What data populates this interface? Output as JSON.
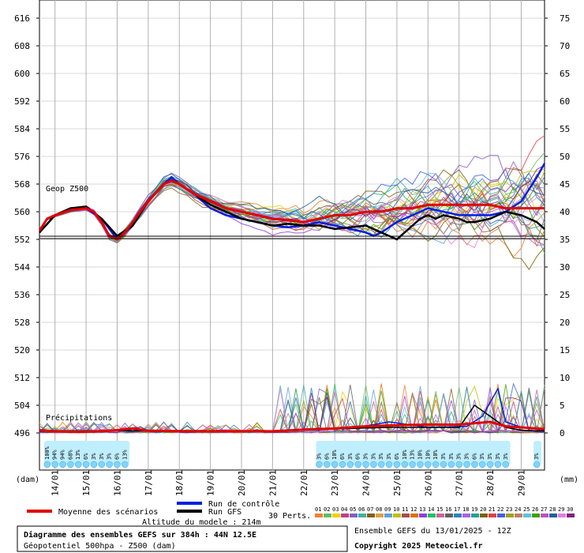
{
  "chart_data": {
    "type": "line",
    "left_axis": {
      "ticks": [
        616,
        608,
        600,
        592,
        584,
        576,
        568,
        560,
        552,
        544,
        536,
        528,
        520,
        512,
        504,
        496
      ],
      "unit": "(dam)"
    },
    "right_axis": {
      "ticks": [
        75,
        70,
        65,
        60,
        55,
        50,
        45,
        40,
        35,
        30,
        25,
        20,
        15,
        10,
        5,
        0
      ],
      "unit": "(mm)"
    },
    "x_ticks": [
      "14/01",
      "15/01",
      "16/01",
      "17/01",
      "18/01",
      "19/01",
      "20/01",
      "21/01",
      "22/01",
      "23/01",
      "24/01",
      "25/01",
      "26/01",
      "27/01",
      "28/01",
      "29/01"
    ],
    "reference_level": 552.5,
    "geop_label": "Geop Z500",
    "precip_label": "Précipitations",
    "mean_z500": [
      [
        0,
        554.5
      ],
      [
        1,
        558
      ],
      [
        2,
        559
      ],
      [
        4,
        560.5
      ],
      [
        6,
        561
      ],
      [
        7,
        560
      ],
      [
        8,
        557
      ],
      [
        9,
        553
      ],
      [
        10,
        552
      ],
      [
        11,
        554
      ],
      [
        12,
        557
      ],
      [
        14,
        563
      ],
      [
        16,
        568
      ],
      [
        17,
        569
      ],
      [
        18,
        568
      ],
      [
        20,
        565
      ],
      [
        22,
        563
      ],
      [
        24,
        561
      ],
      [
        26,
        560
      ],
      [
        28,
        559
      ],
      [
        30,
        558
      ],
      [
        32,
        557.5
      ],
      [
        34,
        557
      ],
      [
        36,
        558
      ],
      [
        38,
        559
      ],
      [
        40,
        559
      ],
      [
        42,
        560
      ],
      [
        44,
        560
      ],
      [
        46,
        561
      ],
      [
        48,
        561
      ],
      [
        50,
        562
      ],
      [
        52,
        562
      ],
      [
        54,
        562
      ],
      [
        56,
        562
      ],
      [
        58,
        562
      ],
      [
        60,
        561
      ],
      [
        62,
        561
      ],
      [
        64,
        561
      ],
      [
        65,
        561
      ]
    ],
    "control_z500": [
      [
        0,
        554
      ],
      [
        2,
        559
      ],
      [
        4,
        561
      ],
      [
        6,
        561
      ],
      [
        8,
        558
      ],
      [
        10,
        552
      ],
      [
        12,
        556
      ],
      [
        14,
        563
      ],
      [
        16,
        568
      ],
      [
        17,
        570
      ],
      [
        18,
        568
      ],
      [
        20,
        565
      ],
      [
        22,
        561
      ],
      [
        24,
        559
      ],
      [
        26,
        558
      ],
      [
        28,
        557
      ],
      [
        30,
        556
      ],
      [
        32,
        555.5
      ],
      [
        34,
        556
      ],
      [
        36,
        557
      ],
      [
        38,
        556
      ],
      [
        40,
        555
      ],
      [
        42,
        554
      ],
      [
        43,
        553
      ],
      [
        44,
        554
      ],
      [
        46,
        557
      ],
      [
        48,
        559
      ],
      [
        50,
        561
      ],
      [
        52,
        560
      ],
      [
        54,
        559
      ],
      [
        56,
        559
      ],
      [
        58,
        559
      ],
      [
        60,
        560
      ],
      [
        62,
        563
      ],
      [
        64,
        570
      ],
      [
        65,
        574
      ]
    ],
    "gfs_z500": [
      [
        0,
        554
      ],
      [
        2,
        559
      ],
      [
        4,
        561
      ],
      [
        6,
        561.5
      ],
      [
        8,
        558
      ],
      [
        10,
        553
      ],
      [
        12,
        556
      ],
      [
        14,
        563
      ],
      [
        16,
        568
      ],
      [
        17,
        569
      ],
      [
        18,
        568
      ],
      [
        20,
        565
      ],
      [
        22,
        562
      ],
      [
        24,
        560
      ],
      [
        26,
        558
      ],
      [
        28,
        557
      ],
      [
        30,
        556
      ],
      [
        32,
        556.5
      ],
      [
        34,
        556
      ],
      [
        36,
        556
      ],
      [
        38,
        555
      ],
      [
        40,
        555.5
      ],
      [
        42,
        556
      ],
      [
        44,
        554
      ],
      [
        45,
        553
      ],
      [
        46,
        552
      ],
      [
        48,
        556
      ],
      [
        49,
        558
      ],
      [
        50,
        559
      ],
      [
        51,
        558
      ],
      [
        52,
        559
      ],
      [
        54,
        558
      ],
      [
        55,
        557
      ],
      [
        56,
        557
      ],
      [
        58,
        558
      ],
      [
        59,
        559
      ],
      [
        60,
        560
      ],
      [
        62,
        559
      ],
      [
        64,
        557
      ],
      [
        65,
        555
      ]
    ],
    "mean_precip": [
      [
        0,
        0.5
      ],
      [
        2,
        0.3
      ],
      [
        4,
        0.2
      ],
      [
        6,
        0.2
      ],
      [
        8,
        0.3
      ],
      [
        10,
        0.5
      ],
      [
        12,
        0.8
      ],
      [
        14,
        0.4
      ],
      [
        20,
        0.3
      ],
      [
        30,
        0.3
      ],
      [
        34,
        0.6
      ],
      [
        38,
        0.8
      ],
      [
        42,
        1.2
      ],
      [
        46,
        1.4
      ],
      [
        50,
        1.5
      ],
      [
        54,
        1.5
      ],
      [
        58,
        2
      ],
      [
        60,
        1.2
      ],
      [
        62,
        1
      ],
      [
        65,
        0.7
      ]
    ],
    "control_precip": [
      [
        0,
        0.3
      ],
      [
        10,
        0.4
      ],
      [
        20,
        0.3
      ],
      [
        30,
        0.4
      ],
      [
        40,
        0.8
      ],
      [
        43,
        1.5
      ],
      [
        45,
        2
      ],
      [
        50,
        1
      ],
      [
        55,
        1.2
      ],
      [
        57,
        3
      ],
      [
        59,
        8
      ],
      [
        60,
        2
      ],
      [
        62,
        1
      ],
      [
        65,
        0.5
      ]
    ],
    "gfs_precip": [
      [
        0,
        0.3
      ],
      [
        10,
        0.4
      ],
      [
        20,
        0.3
      ],
      [
        30,
        0.4
      ],
      [
        40,
        0.8
      ],
      [
        45,
        1
      ],
      [
        50,
        1
      ],
      [
        54,
        1
      ],
      [
        56,
        5
      ],
      [
        58,
        3
      ],
      [
        60,
        1
      ],
      [
        62,
        0.5
      ],
      [
        65,
        0.3
      ]
    ],
    "series": [
      {
        "name": "Moyenne des scénarios",
        "color": "#e00000"
      },
      {
        "name": "Run de contrôle",
        "color": "#0020e0"
      },
      {
        "name": "Run GFS",
        "color": "#000000"
      }
    ],
    "perturbations_label": "30 Perts.",
    "perturbation_ids": [
      "01",
      "02",
      "03",
      "04",
      "05",
      "06",
      "07",
      "08",
      "09",
      "10",
      "11",
      "12",
      "13",
      "14",
      "15",
      "16",
      "17",
      "18",
      "19",
      "20",
      "21",
      "22",
      "23",
      "24",
      "25",
      "26",
      "27",
      "28",
      "29",
      "30"
    ],
    "perturbation_colors": [
      "#f08030",
      "#60c060",
      "#f0d000",
      "#c04080",
      "#8060c0",
      "#40b0a0",
      "#806020",
      "#e0a040",
      "#60a0e0",
      "#c0c000",
      "#a05050",
      "#e07000",
      "#9040e0",
      "#20c060",
      "#d060a0",
      "#606060",
      "#3080c0",
      "#b060e0",
      "#20a0a0",
      "#806000",
      "#e04040",
      "#4060e0",
      "#a0a020",
      "#c08060",
      "#60c0e0",
      "#40a000",
      "#c050c0",
      "#2060a0",
      "#e080e0",
      "#802080"
    ],
    "precip_probabilities": {
      "early": [
        "100%",
        "94%",
        "94%",
        "68%",
        "13%",
        "6%",
        "3%",
        "3%",
        "3%",
        "6%",
        "13%"
      ],
      "late": [
        "3%",
        "6%",
        "10%",
        "6%",
        "3%",
        "6%",
        "3%",
        "3%",
        "3%",
        "3%",
        "6%",
        "10%",
        "13%",
        "10%",
        "10%",
        "10%",
        "3%",
        "3%",
        "3%",
        "3%",
        "6%",
        "3%",
        "3%",
        "3%",
        "3%"
      ],
      "end": [
        "3%"
      ]
    },
    "altitude_label": "Altitude du modele : 214m",
    "title": "Diagramme des ensembles GEFS sur 384h : 44N 12.5E",
    "subtitle": "Géopotentiel 500hpa - Z500 (dam)",
    "run_label": "Ensemble GEFS du 13/01/2025 - 12Z",
    "copyright": "Copyright 2025 Meteociel.fr"
  }
}
